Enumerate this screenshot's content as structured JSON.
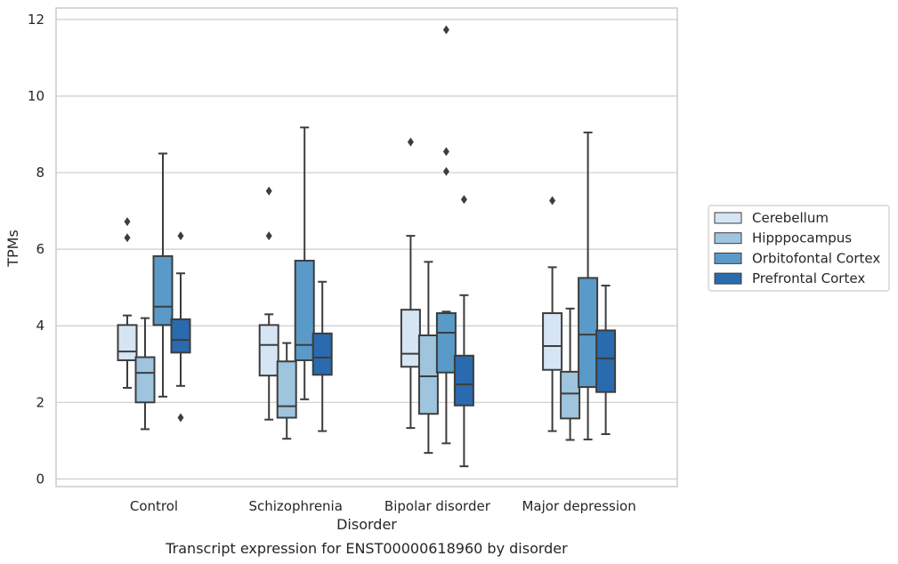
{
  "chart_data": {
    "type": "box",
    "xlabel": "Disorder",
    "ylabel": "TPMs",
    "caption": "Transcript expression for ENST00000618960 by disorder",
    "categories": [
      "Control",
      "Schizophrenia",
      "Bipolar disorder",
      "Major depression"
    ],
    "ylim": [
      -0.2,
      12.3
    ],
    "yticks": [
      0,
      2,
      4,
      6,
      8,
      10,
      12
    ],
    "grid": "horizontal",
    "legend_position": "right",
    "series": [
      {
        "name": "Cerebellum",
        "color": "#d6e5f4",
        "boxes": [
          {
            "whislo": 2.38,
            "q1": 3.1,
            "med": 3.33,
            "q3": 4.02,
            "whishi": 4.27,
            "fliers": [
              6.3,
              6.72
            ]
          },
          {
            "whislo": 1.55,
            "q1": 2.7,
            "med": 3.5,
            "q3": 4.02,
            "whishi": 4.3,
            "fliers": [
              6.35,
              7.52
            ]
          },
          {
            "whislo": 1.33,
            "q1": 2.93,
            "med": 3.27,
            "q3": 4.42,
            "whishi": 6.35,
            "fliers": [
              8.8
            ]
          },
          {
            "whislo": 1.25,
            "q1": 2.85,
            "med": 3.47,
            "q3": 4.33,
            "whishi": 5.53,
            "fliers": [
              7.27
            ]
          }
        ]
      },
      {
        "name": "Hipppocampus",
        "color": "#9ec4de",
        "boxes": [
          {
            "whislo": 1.3,
            "q1": 2.0,
            "med": 2.77,
            "q3": 3.18,
            "whishi": 4.2,
            "fliers": []
          },
          {
            "whislo": 1.05,
            "q1": 1.6,
            "med": 1.9,
            "q3": 3.07,
            "whishi": 3.55,
            "fliers": []
          },
          {
            "whislo": 0.68,
            "q1": 1.7,
            "med": 2.68,
            "q3": 3.75,
            "whishi": 5.67,
            "fliers": []
          },
          {
            "whislo": 1.02,
            "q1": 1.58,
            "med": 2.23,
            "q3": 2.8,
            "whishi": 4.45,
            "fliers": []
          }
        ]
      },
      {
        "name": "Orbitofontal Cortex",
        "color": "#5a9ac9",
        "boxes": [
          {
            "whislo": 2.15,
            "q1": 4.02,
            "med": 4.5,
            "q3": 5.82,
            "whishi": 8.5,
            "fliers": []
          },
          {
            "whislo": 2.08,
            "q1": 3.1,
            "med": 3.5,
            "q3": 5.7,
            "whishi": 9.18,
            "fliers": []
          },
          {
            "whislo": 0.93,
            "q1": 2.78,
            "med": 3.82,
            "q3": 4.33,
            "whishi": 4.37,
            "fliers": [
              8.03,
              8.55,
              11.73
            ]
          },
          {
            "whislo": 1.03,
            "q1": 2.4,
            "med": 3.77,
            "q3": 5.25,
            "whishi": 9.05,
            "fliers": []
          }
        ]
      },
      {
        "name": "Prefrontal Cortex",
        "color": "#2a6aae",
        "boxes": [
          {
            "whislo": 2.43,
            "q1": 3.3,
            "med": 3.63,
            "q3": 4.17,
            "whishi": 5.37,
            "fliers": [
              1.6,
              6.35
            ]
          },
          {
            "whislo": 1.25,
            "q1": 2.72,
            "med": 3.17,
            "q3": 3.8,
            "whishi": 5.15,
            "fliers": []
          },
          {
            "whislo": 0.33,
            "q1": 1.92,
            "med": 2.47,
            "q3": 3.22,
            "whishi": 4.8,
            "fliers": [
              7.3
            ]
          },
          {
            "whislo": 1.17,
            "q1": 2.27,
            "med": 3.15,
            "q3": 3.88,
            "whishi": 5.05,
            "fliers": []
          }
        ]
      }
    ]
  }
}
